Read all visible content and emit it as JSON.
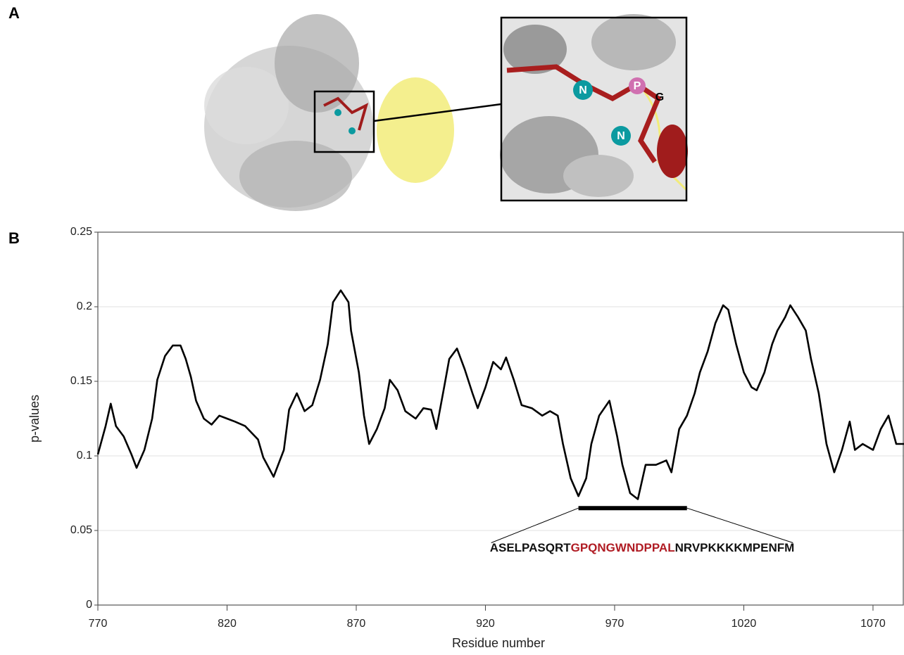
{
  "panel_a": {
    "label": "A",
    "inset_labels": [
      "N",
      "P",
      "G",
      "N"
    ]
  },
  "chart_data": {
    "type": "line",
    "panel_label": "B",
    "x_label": "Residue number",
    "y_label": "p-values",
    "x": [
      770,
      773,
      775,
      777,
      780,
      783,
      785,
      788,
      791,
      793,
      796,
      799,
      802,
      804,
      806,
      808,
      811,
      814,
      817,
      820,
      823,
      827,
      832,
      834,
      838,
      842,
      844,
      847,
      850,
      853,
      856,
      859,
      861,
      864,
      867,
      868,
      871,
      873,
      875,
      878,
      881,
      883,
      886,
      889,
      893,
      896,
      899,
      901,
      904,
      906,
      909,
      912,
      915,
      917,
      920,
      923,
      926,
      928,
      931,
      934,
      938,
      942,
      945,
      948,
      950,
      953,
      956,
      959,
      961,
      964,
      968,
      971,
      973,
      976,
      979,
      982,
      986,
      990,
      992,
      995,
      998,
      1001,
      1003,
      1006,
      1009,
      1012,
      1014,
      1017,
      1020,
      1023,
      1025,
      1028,
      1031,
      1033,
      1036,
      1038,
      1041,
      1044,
      1046,
      1049,
      1052,
      1055,
      1058,
      1061,
      1063,
      1066,
      1070,
      1073,
      1076,
      1079,
      1082
    ],
    "values": [
      0.101,
      0.12,
      0.135,
      0.12,
      0.113,
      0.101,
      0.092,
      0.104,
      0.125,
      0.151,
      0.167,
      0.174,
      0.174,
      0.165,
      0.153,
      0.137,
      0.125,
      0.121,
      0.127,
      0.125,
      0.123,
      0.12,
      0.111,
      0.099,
      0.086,
      0.104,
      0.131,
      0.142,
      0.13,
      0.134,
      0.151,
      0.175,
      0.203,
      0.211,
      0.203,
      0.184,
      0.156,
      0.127,
      0.108,
      0.118,
      0.132,
      0.151,
      0.144,
      0.13,
      0.125,
      0.132,
      0.131,
      0.118,
      0.146,
      0.165,
      0.172,
      0.158,
      0.142,
      0.132,
      0.146,
      0.163,
      0.158,
      0.166,
      0.151,
      0.134,
      0.132,
      0.127,
      0.13,
      0.127,
      0.108,
      0.085,
      0.073,
      0.085,
      0.108,
      0.127,
      0.137,
      0.113,
      0.094,
      0.075,
      0.071,
      0.094,
      0.094,
      0.097,
      0.089,
      0.118,
      0.127,
      0.142,
      0.156,
      0.17,
      0.189,
      0.201,
      0.198,
      0.175,
      0.156,
      0.146,
      0.144,
      0.156,
      0.175,
      0.184,
      0.193,
      0.201,
      0.193,
      0.184,
      0.165,
      0.142,
      0.108,
      0.089,
      0.104,
      0.123,
      0.104,
      0.108,
      0.104,
      0.118,
      0.127,
      0.108,
      0.108
    ],
    "color": "#000000",
    "xlim": [
      770,
      1082
    ],
    "ylim": [
      0,
      0.25
    ],
    "xticks": [
      770,
      820,
      870,
      920,
      970,
      1020,
      1070
    ],
    "yticks": [
      0,
      0.05,
      0.1,
      0.15,
      0.2,
      0.25
    ],
    "grid": true,
    "highlight": {
      "x": [
        956,
        998
      ],
      "y": 0.065
    },
    "sequence": [
      {
        "text": "ASELPASQRT",
        "color": "#111111"
      },
      {
        "text": "GPQNGWNDPPAL",
        "color": "#b01c24"
      },
      {
        "text": "NRVPKKKKMPENFM",
        "color": "#111111"
      }
    ]
  }
}
